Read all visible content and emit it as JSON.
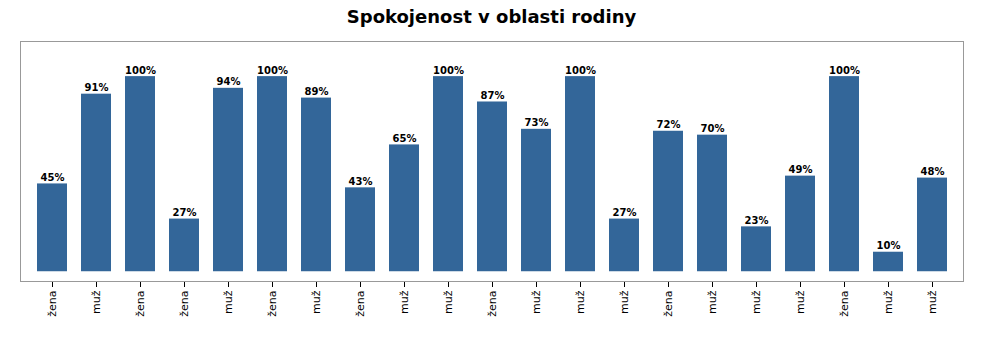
{
  "chart_data": {
    "type": "bar",
    "title": "Spokojenost v oblasti rodiny",
    "categories": [
      "žena",
      "muž",
      "žena",
      "žena",
      "muž",
      "žena",
      "muž",
      "žena",
      "muž",
      "muž",
      "žena",
      "muž",
      "muž",
      "muž",
      "žena",
      "muž",
      "muž",
      "muž",
      "žena",
      "muž",
      "muž"
    ],
    "values": [
      45,
      91,
      100,
      27,
      94,
      100,
      89,
      43,
      65,
      100,
      87,
      73,
      100,
      27,
      72,
      70,
      23,
      49,
      100,
      10,
      48
    ],
    "value_labels": [
      "45%",
      "91%",
      "100%",
      "27%",
      "94%",
      "100%",
      "89%",
      "43%",
      "65%",
      "100%",
      "87%",
      "73%",
      "100%",
      "27%",
      "72%",
      "70%",
      "23%",
      "49%",
      "100%",
      "10%",
      "48%"
    ],
    "color": "#336699",
    "ylim": [
      -5,
      118
    ],
    "grid": false,
    "data_labels": true,
    "tick_labels": "x"
  }
}
